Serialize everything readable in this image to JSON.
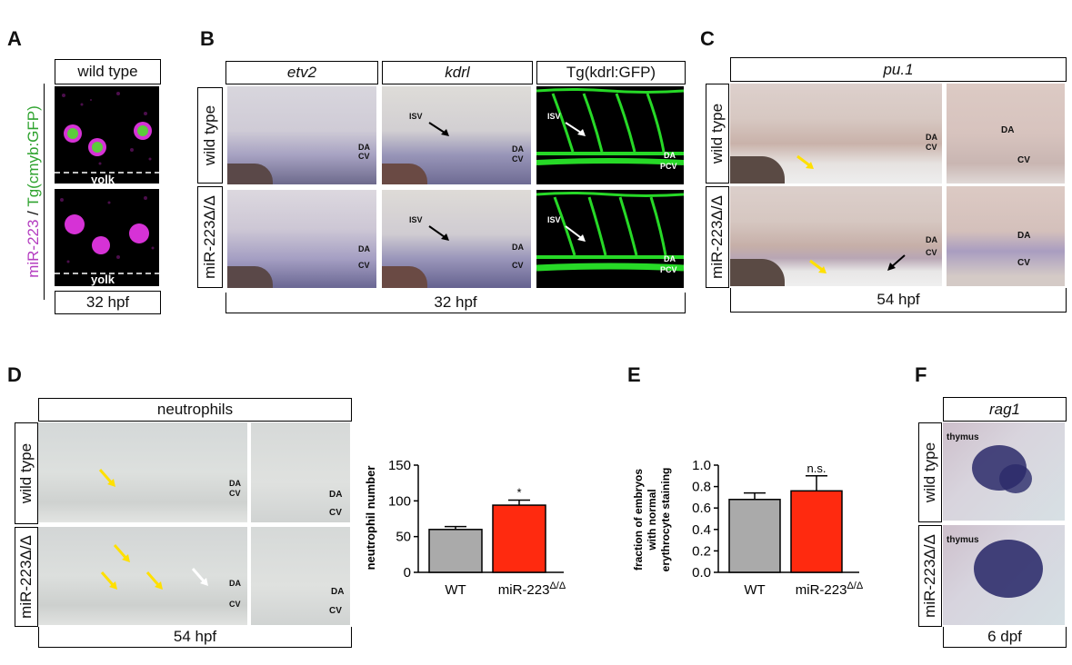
{
  "panels": {
    "A": "A",
    "B": "B",
    "C": "C",
    "D": "D",
    "E": "E",
    "F": "F"
  },
  "genotypes": {
    "wild_type": "wild type",
    "mutant": "miR-223Δ/Δ"
  },
  "panelA": {
    "header": "wild type",
    "side_label_magenta": "miR-223",
    "side_label_sep": " / ",
    "side_label_green": "Tg(cmyb:GFP)",
    "yolk": "yolk",
    "footer": "32 hpf"
  },
  "panelB": {
    "headers": [
      "etv2",
      "kdrl",
      "Tg(kdrl:GFP)"
    ],
    "labels": {
      "isv": "ISV",
      "da": "DA",
      "cv": "CV",
      "pcv": "PCV"
    },
    "footer": "32 hpf"
  },
  "panelC": {
    "header": "pu.1",
    "labels": {
      "da": "DA",
      "cv": "CV"
    },
    "footer": "54 hpf"
  },
  "panelD": {
    "header": "neutrophils",
    "labels": {
      "da": "DA",
      "cv": "CV"
    },
    "footer": "54 hpf"
  },
  "panelF": {
    "header": "rag1",
    "thymus": "thymus",
    "footer": "6 dpf"
  },
  "chart_data": [
    {
      "type": "bar",
      "categories": [
        "WT",
        "miR-223Δ/Δ"
      ],
      "values": [
        60,
        94
      ],
      "errors": [
        4,
        7
      ],
      "bar_colors": [
        "#aaaaaa",
        "#ff2a0f"
      ],
      "annotations": [
        "",
        "*"
      ],
      "ylabel": "neutrophil number",
      "ylim": [
        0,
        150
      ],
      "yticks": [
        0,
        50,
        100,
        150
      ],
      "ytick_labels": [
        "0",
        "50",
        "100",
        "150"
      ]
    },
    {
      "type": "bar",
      "categories": [
        "WT",
        "miR-223Δ/Δ"
      ],
      "values": [
        0.68,
        0.76
      ],
      "errors": [
        0.06,
        0.14
      ],
      "bar_colors": [
        "#aaaaaa",
        "#ff2a0f"
      ],
      "annotations": [
        "",
        "n.s."
      ],
      "ylabel_lines": [
        "fraction of embryos",
        "with normal",
        "erythrocyte staining"
      ],
      "ylim": [
        0,
        1.0
      ],
      "yticks": [
        0,
        0.2,
        0.4,
        0.6,
        0.8,
        1.0
      ],
      "ytick_labels": [
        "0.0",
        "0.2",
        "0.4",
        "0.6",
        "0.8",
        "1.0"
      ]
    }
  ]
}
